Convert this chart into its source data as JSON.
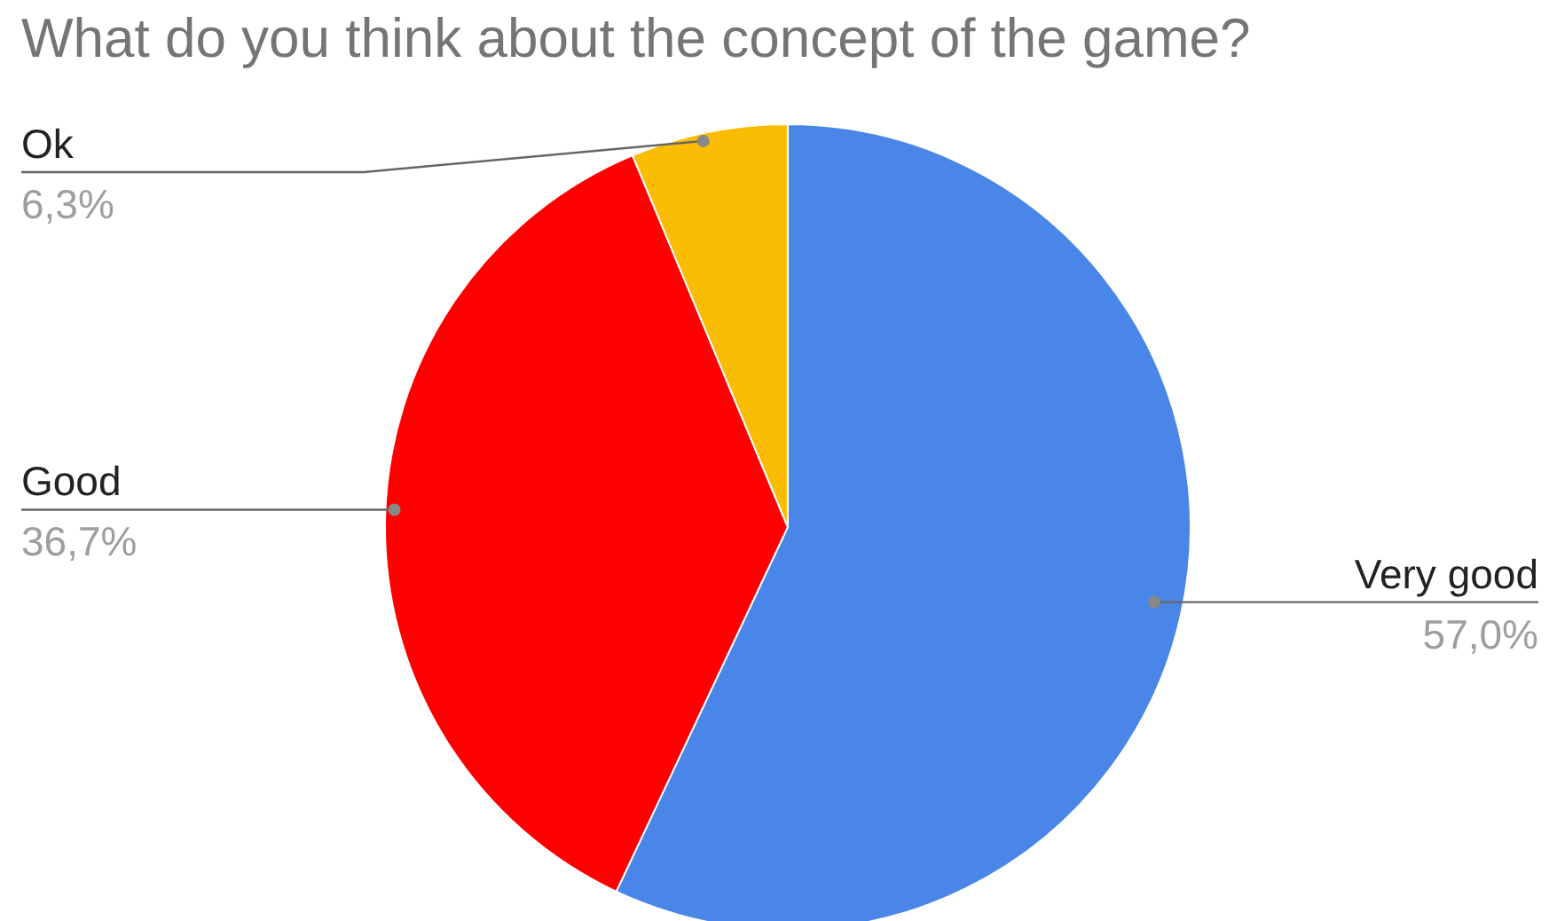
{
  "chart_data": {
    "type": "pie",
    "title": "What do you think about the concept of the game?",
    "categories": [
      "Very good",
      "Good",
      "Ok"
    ],
    "values": [
      57.0,
      36.7,
      6.3
    ],
    "colors": [
      "#4a86e8",
      "#ff0000",
      "#fbbc04"
    ],
    "value_labels": [
      "57,0%",
      "36,7%",
      "6,3%"
    ]
  }
}
